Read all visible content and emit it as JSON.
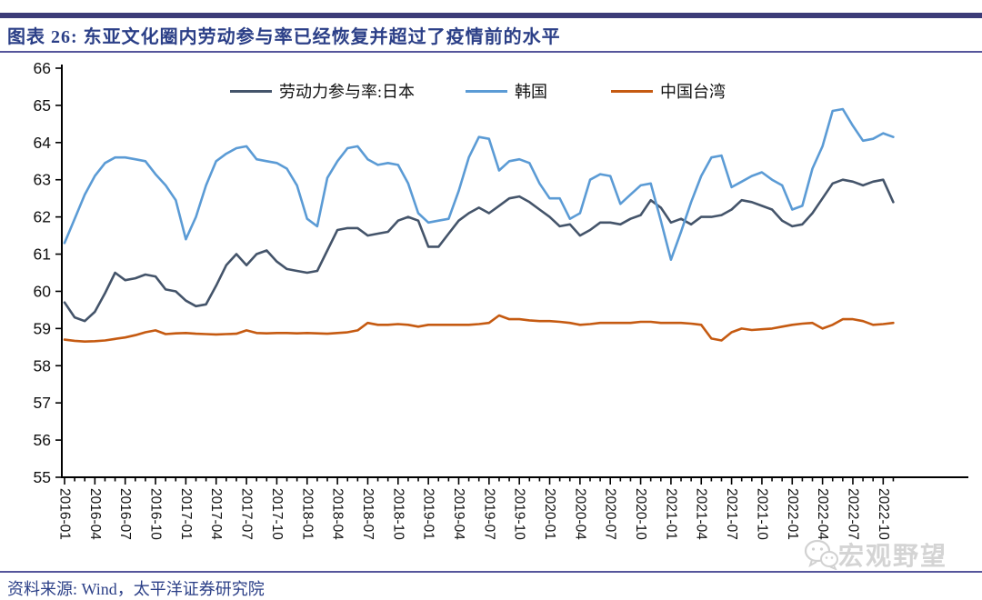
{
  "header": {
    "title": "图表 26:  东亚文化圈内劳动参与率已经恢复并超过了疫情前的水平"
  },
  "footer": {
    "source": "资料来源: Wind，太平洋证券研究院"
  },
  "watermark": {
    "text": "宏观野望",
    "icon": "wechat-icon"
  },
  "colors": {
    "title_text": "#2b3f87",
    "rule": "#55559b",
    "axis": "#000000",
    "japan": "#44546A",
    "korea": "#5B9BD5",
    "taiwan": "#C55A11",
    "watermark": "#cdcdcd"
  },
  "chart_data": {
    "type": "line",
    "title": "东亚文化圈内劳动参与率已经恢复并超过了疫情前的水平",
    "xlabel": "",
    "ylabel": "",
    "ylim": [
      55,
      66
    ],
    "grid": false,
    "legend_position": "top",
    "x_start": "2016-01",
    "x_end": "2022-11",
    "x_frequency": "monthly",
    "y_ticks": [
      55,
      56,
      57,
      58,
      59,
      60,
      61,
      62,
      63,
      64,
      65,
      66
    ],
    "x_tick_labels": [
      "2016-01",
      "2016-04",
      "2016-07",
      "2016-10",
      "2017-01",
      "2017-04",
      "2017-07",
      "2017-10",
      "2018-01",
      "2018-04",
      "2018-07",
      "2018-10",
      "2019-01",
      "2019-04",
      "2019-07",
      "2019-10",
      "2020-01",
      "2020-04",
      "2020-07",
      "2020-10",
      "2021-01",
      "2021-04",
      "2021-07",
      "2021-10",
      "2022-01",
      "2022-04",
      "2022-07",
      "2022-10"
    ],
    "series": [
      {
        "name": "劳动力参与率:日本",
        "color": "#44546A",
        "values": [
          59.7,
          59.3,
          59.2,
          59.45,
          59.95,
          60.5,
          60.3,
          60.35,
          60.45,
          60.4,
          60.05,
          60.0,
          59.75,
          59.6,
          59.65,
          60.15,
          60.7,
          61.0,
          60.7,
          61.0,
          61.1,
          60.8,
          60.6,
          60.55,
          60.5,
          60.55,
          61.1,
          61.65,
          61.7,
          61.7,
          61.5,
          61.55,
          61.6,
          61.9,
          62.0,
          61.9,
          61.2,
          61.2,
          61.55,
          61.9,
          62.1,
          62.25,
          62.1,
          62.3,
          62.5,
          62.55,
          62.4,
          62.2,
          62.0,
          61.75,
          61.8,
          61.5,
          61.65,
          61.85,
          61.85,
          61.8,
          61.95,
          62.05,
          62.45,
          62.25,
          61.85,
          61.95,
          61.8,
          62.0,
          62.0,
          62.05,
          62.2,
          62.45,
          62.4,
          62.3,
          62.2,
          61.9,
          61.75,
          61.8,
          62.1,
          62.5,
          62.9,
          63.0,
          62.95,
          62.85,
          62.95,
          63.0,
          62.4
        ]
      },
      {
        "name": "韩国",
        "color": "#5B9BD5",
        "values": [
          61.3,
          61.95,
          62.6,
          63.1,
          63.45,
          63.6,
          63.6,
          63.55,
          63.5,
          63.15,
          62.85,
          62.45,
          61.4,
          62.0,
          62.85,
          63.5,
          63.7,
          63.85,
          63.9,
          63.55,
          63.5,
          63.45,
          63.3,
          62.85,
          61.95,
          61.75,
          63.05,
          63.5,
          63.85,
          63.9,
          63.55,
          63.4,
          63.45,
          63.4,
          62.9,
          62.1,
          61.85,
          61.9,
          61.95,
          62.7,
          63.6,
          64.15,
          64.1,
          63.25,
          63.5,
          63.55,
          63.45,
          62.9,
          62.5,
          62.5,
          61.95,
          62.1,
          63.0,
          63.15,
          63.1,
          62.35,
          62.6,
          62.85,
          62.9,
          61.9,
          60.85,
          61.6,
          62.4,
          63.1,
          63.6,
          63.65,
          62.8,
          62.95,
          63.1,
          63.2,
          63.0,
          62.85,
          62.2,
          62.3,
          63.3,
          63.9,
          64.85,
          64.9,
          64.45,
          64.05,
          64.1,
          64.25,
          64.15
        ]
      },
      {
        "name": "中国台湾",
        "color": "#C55A11",
        "values": [
          58.7,
          58.67,
          58.65,
          58.66,
          58.68,
          58.72,
          58.76,
          58.82,
          58.9,
          58.95,
          58.85,
          58.87,
          58.88,
          58.86,
          58.85,
          58.84,
          58.85,
          58.86,
          58.95,
          58.88,
          58.87,
          58.88,
          58.88,
          58.87,
          58.88,
          58.87,
          58.86,
          58.88,
          58.9,
          58.95,
          59.15,
          59.1,
          59.1,
          59.12,
          59.1,
          59.05,
          59.1,
          59.1,
          59.1,
          59.1,
          59.1,
          59.12,
          59.15,
          59.35,
          59.25,
          59.25,
          59.22,
          59.2,
          59.2,
          59.18,
          59.15,
          59.1,
          59.12,
          59.15,
          59.15,
          59.15,
          59.15,
          59.18,
          59.18,
          59.15,
          59.15,
          59.15,
          59.13,
          59.1,
          58.73,
          58.68,
          58.9,
          59.0,
          58.96,
          58.98,
          59.0,
          59.05,
          59.1,
          59.13,
          59.15,
          59.0,
          59.1,
          59.25,
          59.25,
          59.2,
          59.1,
          59.12,
          59.15
        ]
      }
    ]
  }
}
